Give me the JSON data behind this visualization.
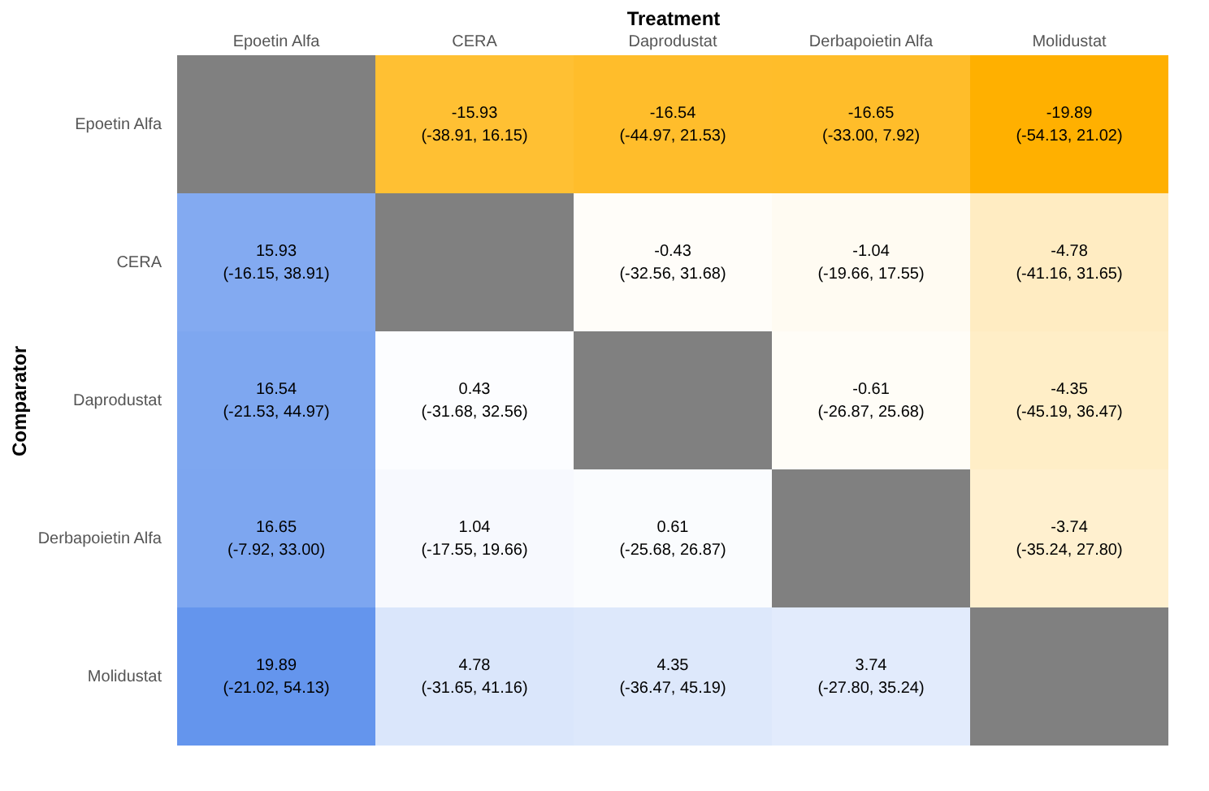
{
  "chart_data": {
    "type": "heatmap",
    "data_labels": true,
    "xlabel": "Treatment",
    "ylabel": "Comparator",
    "categories": [
      "Epoetin Alfa",
      "CERA",
      "Daprodustat",
      "Derbapoietin Alfa",
      "Molidustat"
    ],
    "y_categories": [
      "Epoetin Alfa",
      "CERA",
      "Daprodustat",
      "Derbapoietin Alfa",
      "Molidustat"
    ],
    "cells": [
      [
        null,
        -15.93,
        -16.54,
        -16.65,
        -19.89
      ],
      [
        15.93,
        null,
        -0.43,
        -1.04,
        -4.78
      ],
      [
        16.54,
        0.43,
        null,
        -0.61,
        -4.35
      ],
      [
        16.65,
        1.04,
        0.61,
        null,
        -3.74
      ],
      [
        19.89,
        4.78,
        4.35,
        3.74,
        null
      ]
    ],
    "annotations": [
      "(-38.91, 16.15)",
      "(-44.97, 21.53)",
      "(-33.00, 7.92)",
      "(-54.13, 21.02)",
      "(-16.15, 38.91)",
      "(-32.56, 31.68)",
      "(-19.66, 17.55)",
      "(-41.16, 31.65)",
      "(-21.53, 44.97)",
      "(-31.68, 32.56)",
      "(-26.87, 25.68)",
      "(-45.19, 36.47)",
      "(-7.92, 33.00)",
      "(-17.55, 19.66)",
      "(-25.68, 26.87)",
      "(-35.24, 27.80)",
      "(-21.02, 54.13)",
      "(-31.65, 41.16)",
      "(-36.47, 45.19)",
      "(-27.80, 35.24)"
    ]
  }
}
